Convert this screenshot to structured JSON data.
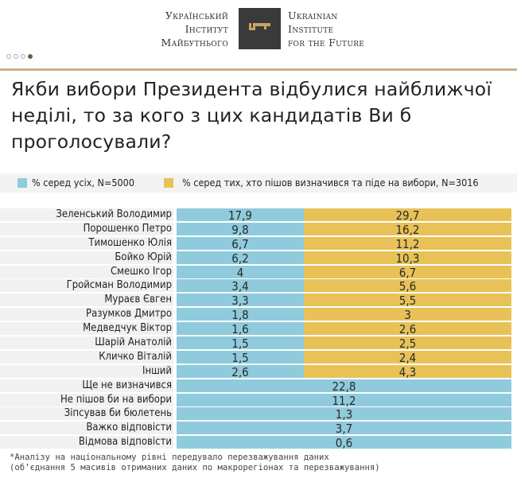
{
  "logo": {
    "uk_lines": [
      "Український",
      "Інститут",
      "Майбутнього"
    ],
    "en_lines": [
      "Ukrainian",
      "Institute",
      "for the Future"
    ],
    "icon": "key-icon"
  },
  "pagination": {
    "total": 4,
    "active": 4
  },
  "title": "Якби вибори Президента відбулися найближчої неділі, то за кого з цих кандидатів Ви б проголосували?",
  "colors": {
    "all": "#8fcbdc",
    "decided": "#e8c257",
    "rule": "#cdb184"
  },
  "chart_data": {
    "type": "bar",
    "legend_position": "top",
    "series": [
      {
        "name": "% серед усіх, N=5000",
        "color": "#8fcbdc"
      },
      {
        "name": "% серед тих, хто пішов визначився та піде на вибори, N=3016",
        "color": "#e8c257"
      }
    ],
    "rows": [
      {
        "label": "Зеленський Володимир",
        "all": "17,9",
        "decided": "29,7"
      },
      {
        "label": "Порошенко Петро",
        "all": "9,8",
        "decided": "16,2"
      },
      {
        "label": "Тимошенко Юлія",
        "all": "6,7",
        "decided": "11,2"
      },
      {
        "label": "Бойко Юрій",
        "all": "6,2",
        "decided": "10,3"
      },
      {
        "label": "Смешко Ігор",
        "all": "4",
        "decided": "6,7"
      },
      {
        "label": "Гройсман Володимир",
        "all": "3,4",
        "decided": "5,6"
      },
      {
        "label": "Мураєв Євген",
        "all": "3,3",
        "decided": "5,5"
      },
      {
        "label": "Разумков Дмитро",
        "all": "1,8",
        "decided": "3"
      },
      {
        "label": "Медведчук Віктор",
        "all": "1,6",
        "decided": "2,6"
      },
      {
        "label": "Шарій Анатолій",
        "all": "1,5",
        "decided": "2,5"
      },
      {
        "label": "Кличко Віталій",
        "all": "1,5",
        "decided": "2,4"
      },
      {
        "label": "Інший",
        "all": "2,6",
        "decided": "4,3"
      },
      {
        "label": "Ще не визначився",
        "all": "22,8"
      },
      {
        "label": "Не пішов би на вибори",
        "all": "11,2"
      },
      {
        "label": "Зіпсував би бюлетень",
        "all": "1,3"
      },
      {
        "label": "Важко відповісти",
        "all": "3,7"
      },
      {
        "label": "Відмова відповісти",
        "all": "0,6"
      }
    ]
  },
  "footnote": "*Аналізу на національному рівні передувало перезважування даних\n(об’єднання 5 масивів отриманих даних по макрорегіонах та перезважування)"
}
